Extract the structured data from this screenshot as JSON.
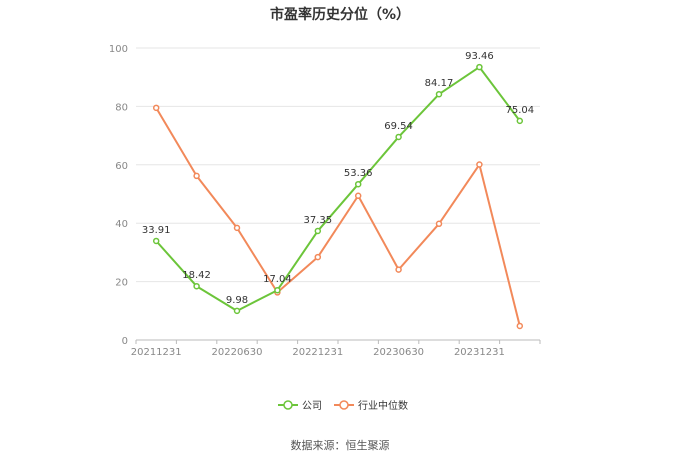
{
  "title": "市盈率历史分位（%）",
  "source": "数据来源：恒生聚源",
  "chart_data": {
    "type": "line",
    "title": "市盈率历史分位（%）",
    "xlabel": "",
    "ylabel": "",
    "ylim": [
      0,
      100
    ],
    "yticks": [
      0,
      20,
      40,
      60,
      80,
      100
    ],
    "grid": true,
    "legend_position": "bottom",
    "x": [
      "20211231",
      "20220331",
      "20220630",
      "20220930",
      "20221231",
      "20230331",
      "20230630",
      "20230930",
      "20231231",
      "20240331"
    ],
    "x_tick_labels": [
      "20211231",
      "",
      "20220630",
      "",
      "20221231",
      "",
      "20230630",
      "",
      "20231231",
      ""
    ],
    "series": [
      {
        "name": "公司",
        "color": "#6cc53a",
        "values": [
          33.91,
          18.42,
          9.98,
          17.04,
          37.35,
          53.36,
          69.54,
          84.17,
          93.46,
          75.04
        ],
        "labels": [
          "33.91",
          "18.42",
          "9.98",
          "17.04",
          "37.35",
          "53.36",
          "69.54",
          "84.17",
          "93.46",
          "75.04"
        ]
      },
      {
        "name": "行业中位数",
        "color": "#f2895a",
        "values": [
          79.5,
          56.2,
          38.4,
          16.3,
          28.4,
          49.4,
          24.1,
          39.8,
          60.1,
          4.8
        ]
      }
    ]
  }
}
